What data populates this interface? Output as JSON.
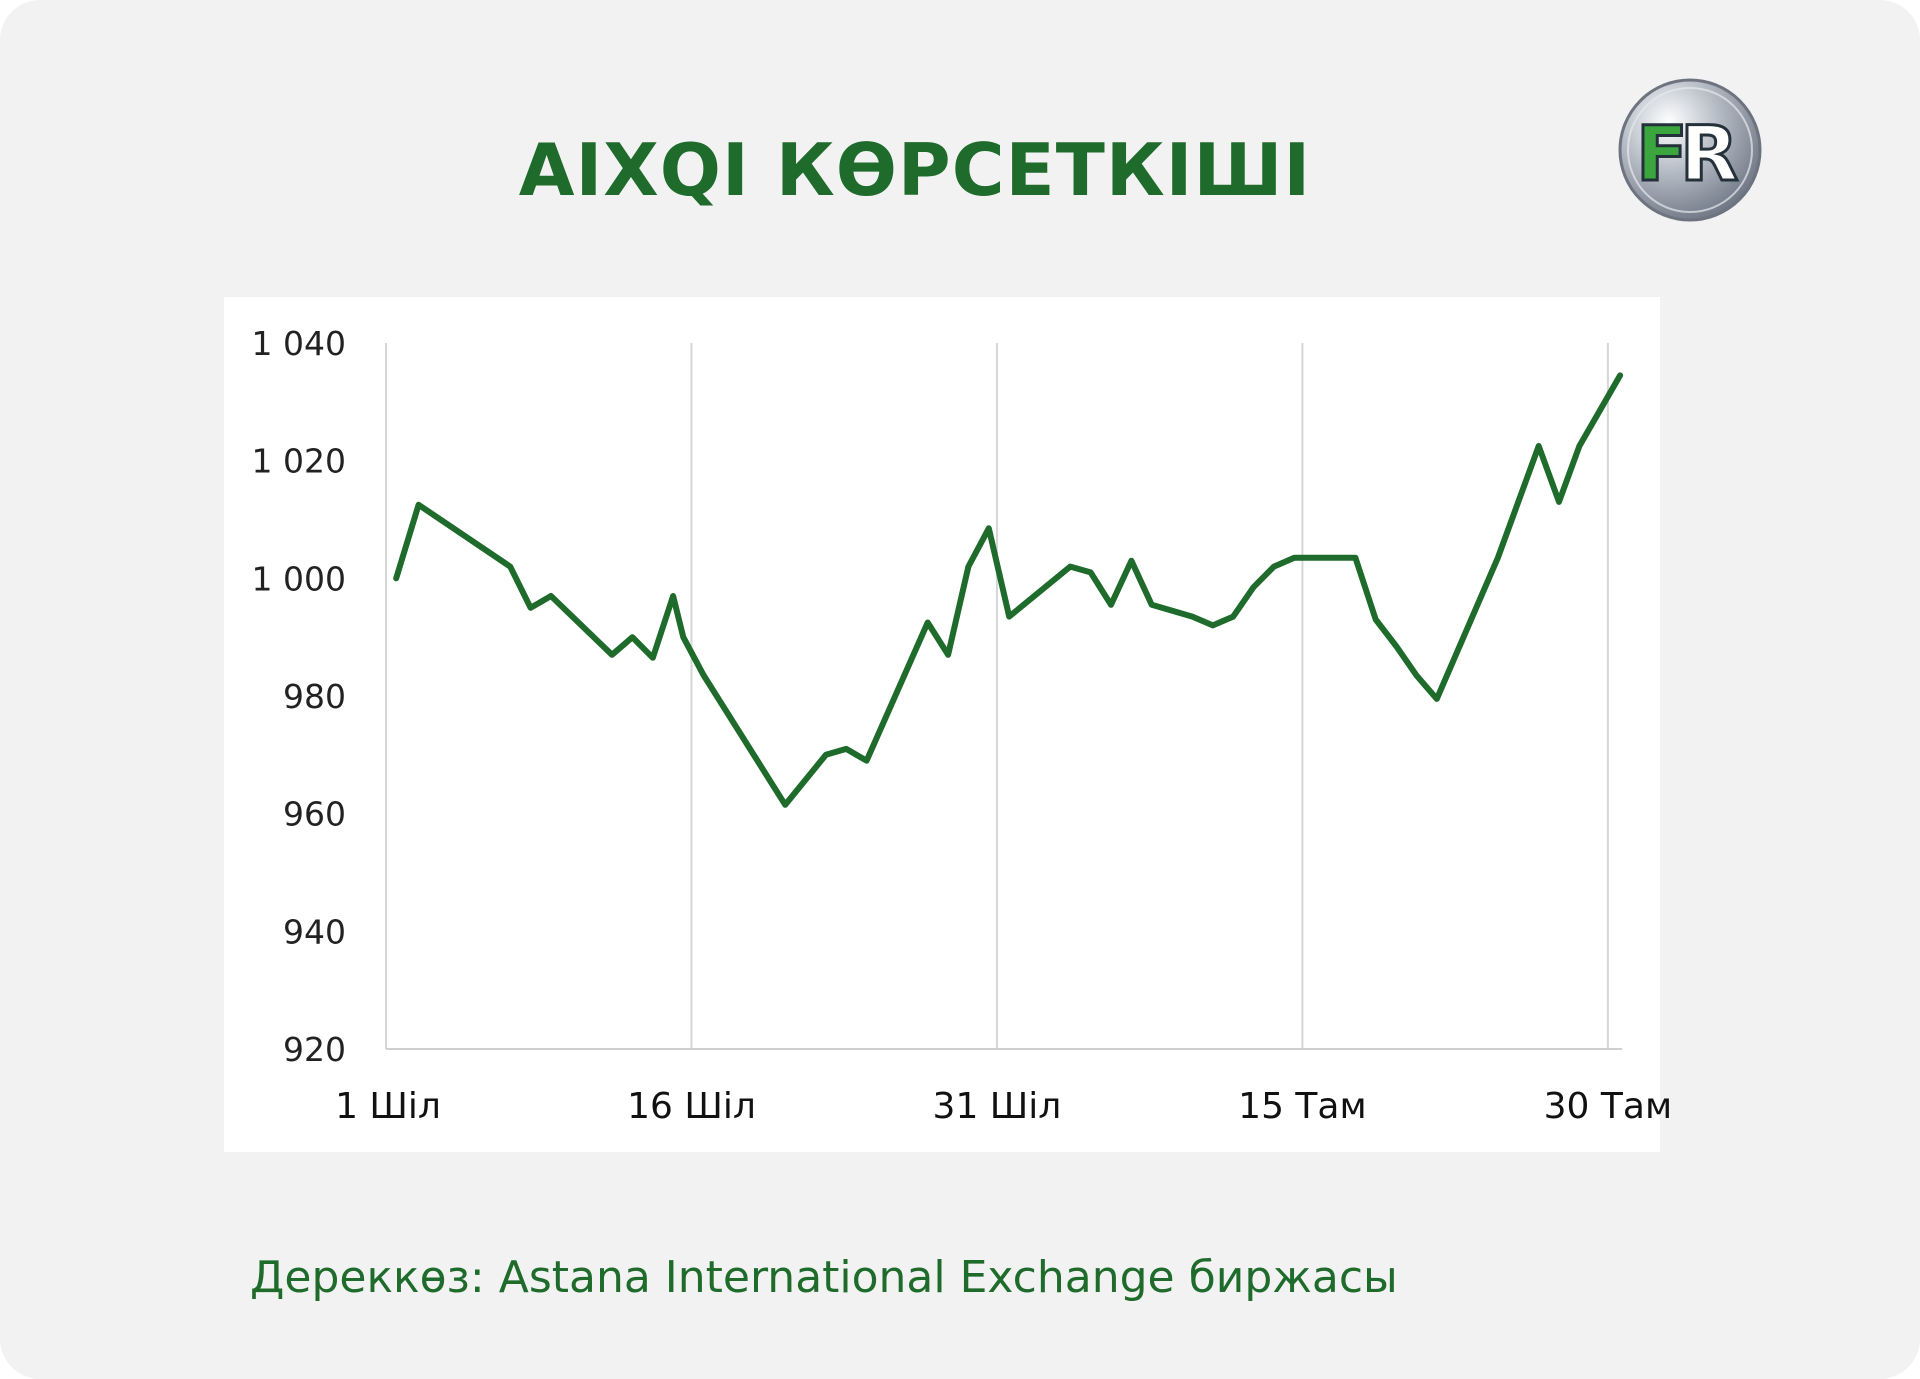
{
  "title": "AIXQI КӨРСЕТКІШІ",
  "logo": {
    "text_left": "F",
    "text_right": "R",
    "name": "fr-logo"
  },
  "source": "Дереккөз: Astana International Exchange биржасы",
  "colors": {
    "line": "#1e6b2b",
    "title": "#1e6b2b",
    "grid": "#d6d6d6",
    "background": "#f2f2f2"
  },
  "chart_data": {
    "type": "line",
    "title": "",
    "xlabel": "",
    "ylabel": "",
    "ylim": [
      920,
      1040
    ],
    "yticks": [
      920,
      940,
      960,
      980,
      1000,
      1020,
      1040
    ],
    "ytick_labels": [
      "920",
      "940",
      "960",
      "980",
      "1 000",
      "1 020",
      "1 040"
    ],
    "xlim": [
      1,
      61.3
    ],
    "xticks": [
      1,
      16,
      31,
      46,
      61
    ],
    "xtick_labels": [
      "1 Шіл",
      "16 Шіл",
      "31 Шіл",
      "15 Там",
      "30 Там"
    ],
    "grid": "vertical",
    "legend": "none",
    "series": [
      {
        "x": [
          1.5,
          2.6,
          7.1,
          8.1,
          9.1,
          12.1,
          13.1,
          14.1,
          15.1,
          15.6,
          16.6,
          20.6,
          22.6,
          23.6,
          24.6,
          27.6,
          28.6,
          29.6,
          30.6,
          31.6,
          34.6,
          35.6,
          36.6,
          37.6,
          38.6,
          40.6,
          41.6,
          42.6,
          43.6,
          44.6,
          45.6,
          48.6,
          49.6,
          50.6,
          51.6,
          52.6,
          55.6,
          57.6,
          58.6,
          59.6,
          61.6
        ],
        "y": [
          1000,
          1012.5,
          1002,
          995,
          997,
          987,
          990,
          986.5,
          997,
          990,
          983.5,
          961.5,
          970,
          971,
          969,
          992.5,
          987,
          1002,
          1008.5,
          993.5,
          1002,
          1001,
          995.5,
          1003,
          995.5,
          993.5,
          992,
          993.5,
          998.5,
          1002,
          1003.5,
          1003.5,
          993,
          988.5,
          983.5,
          979.5,
          1003.5,
          1022.5,
          1013,
          1022.5,
          1034.5
        ]
      }
    ]
  }
}
